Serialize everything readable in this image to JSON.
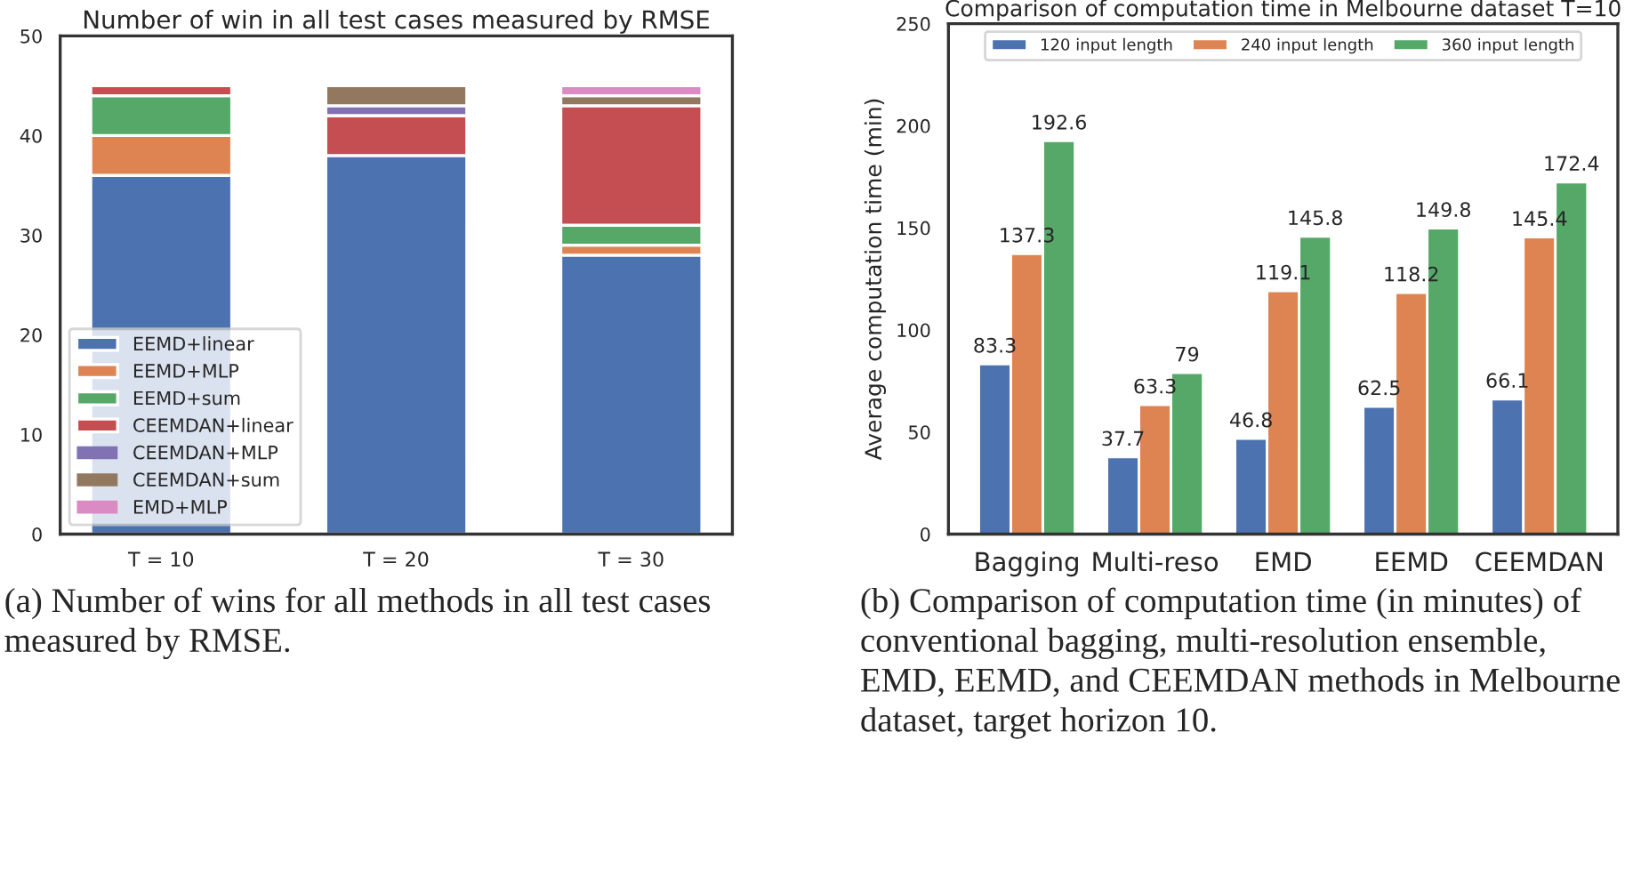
{
  "chart_data": [
    {
      "type": "bar",
      "stacked": true,
      "title": "Number of win in all test cases measured by RMSE",
      "categories": [
        "T = 10",
        "T = 20",
        "T = 30"
      ],
      "ylim": [
        0,
        50
      ],
      "yticks": [
        0,
        10,
        20,
        30,
        40,
        50
      ],
      "legend": "bottom left",
      "grid": false,
      "series": [
        {
          "name": "EEMD+linear",
          "color": "#4c72b0",
          "values": [
            36,
            38,
            28
          ]
        },
        {
          "name": "EEMD+MLP",
          "color": "#dd8452",
          "values": [
            4,
            0,
            1
          ]
        },
        {
          "name": "EEMD+sum",
          "color": "#55a868",
          "values": [
            4,
            0,
            2
          ]
        },
        {
          "name": "CEEMDAN+linear",
          "color": "#c44e52",
          "values": [
            1,
            4,
            12
          ]
        },
        {
          "name": "CEEMDAN+MLP",
          "color": "#8172b3",
          "values": [
            0,
            1,
            0
          ]
        },
        {
          "name": "CEEMDAN+sum",
          "color": "#937860",
          "values": [
            0,
            2,
            1
          ]
        },
        {
          "name": "EMD+MLP",
          "color": "#da8bc3",
          "values": [
            0,
            0,
            1
          ]
        }
      ],
      "annotations": [
        "(a) Number of wins for all methods in all test cases measured by RMSE."
      ]
    },
    {
      "type": "bar",
      "title": "Comparison of computation time in Melbourne dataset T=10",
      "ylabel": "Average computation time (min)",
      "categories": [
        "Bagging",
        "Multi-reso",
        "EMD",
        "EEMD",
        "CEEMDAN"
      ],
      "ylim": [
        0,
        250
      ],
      "yticks": [
        0,
        50,
        100,
        150,
        200,
        250
      ],
      "legend": "top",
      "grid": false,
      "data_labels": true,
      "series": [
        {
          "name": "120 input length",
          "color": "#4c72b0",
          "values": [
            83.3,
            37.7,
            46.8,
            62.5,
            66.1
          ]
        },
        {
          "name": "240 input length",
          "color": "#dd8452",
          "values": [
            137.3,
            63.3,
            119.1,
            118.2,
            145.4
          ]
        },
        {
          "name": "360 input length",
          "color": "#55a868",
          "values": [
            192.6,
            79,
            145.8,
            149.8,
            172.4
          ]
        }
      ],
      "annotations": [
        "(b) Comparison of computation time (in minutes) of conventional bagging, multi-resolution ensemble, EMD, EEMD, and CEEMDAN methods in Melbourne dataset, target horizon 10."
      ]
    }
  ]
}
